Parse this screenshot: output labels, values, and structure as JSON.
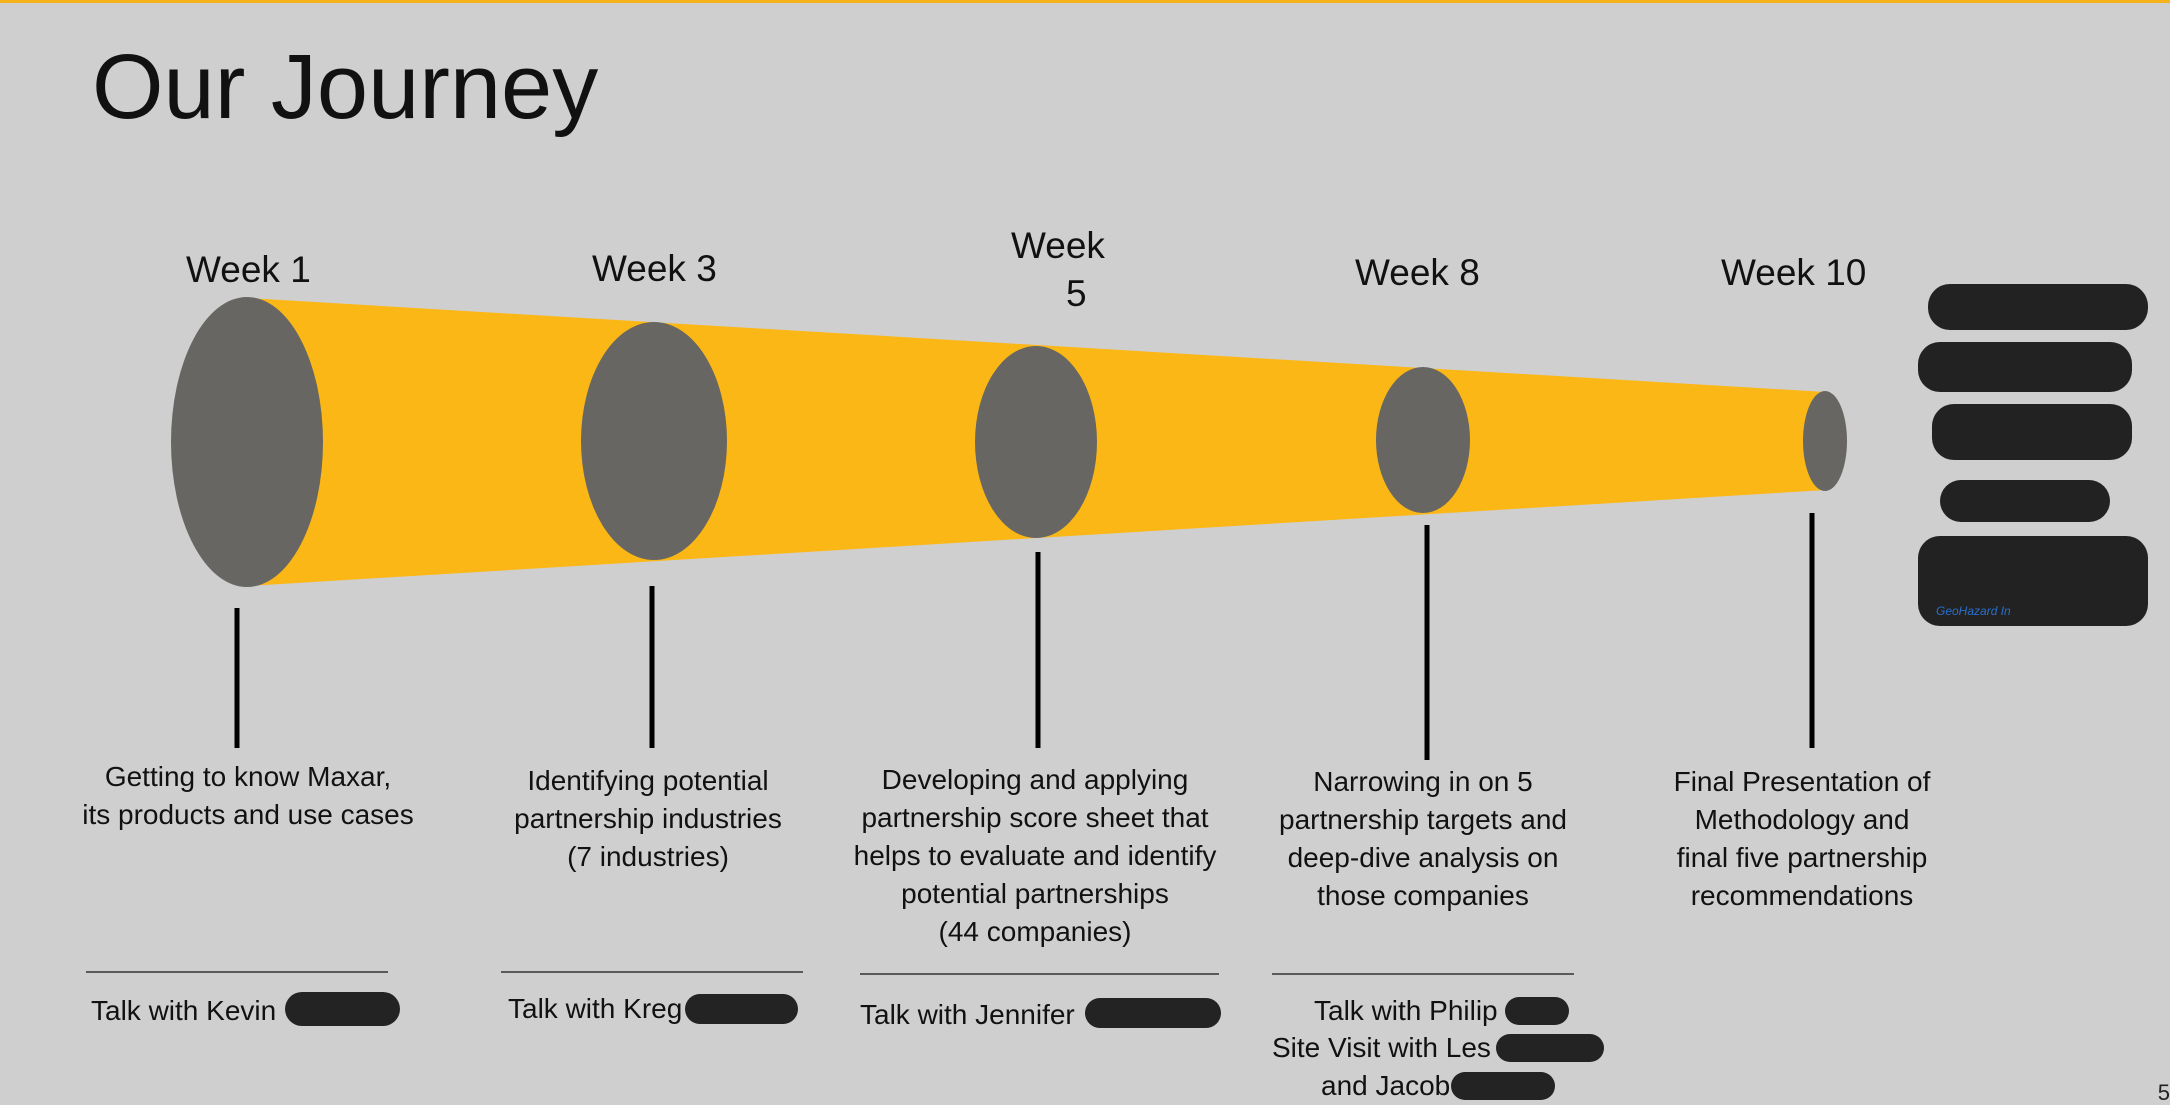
{
  "slide": {
    "title": "Our Journey",
    "page_number": "5",
    "accent_color": "#f5b21a",
    "ellipse_color": "#686663",
    "background_color": "#d0cfcf"
  },
  "milestones": [
    {
      "week": "Week 1",
      "description": [
        "Getting to know Maxar,",
        "its products and use cases"
      ],
      "talk": [
        "Talk with Kevin"
      ]
    },
    {
      "week": "Week 3",
      "description": [
        "Identifying potential",
        "partnership industries",
        "(7 industries)"
      ],
      "talk": [
        "Talk with Kreg"
      ]
    },
    {
      "week_line1": "Week",
      "week_line2": "5",
      "description": [
        "Developing and applying",
        "partnership score sheet that",
        "helps to evaluate and identify",
        "potential partnerships",
        "(44 companies)"
      ],
      "talk": [
        "Talk with Jennifer"
      ]
    },
    {
      "week": "Week 8",
      "description": [
        "Narrowing in on 5",
        "partnership targets and",
        "deep-dive analysis on",
        "those companies"
      ],
      "talk": [
        "Talk with Philip",
        "Site Visit with Les",
        "and Jacob"
      ]
    },
    {
      "week": "Week 10",
      "description": [
        "Final Presentation of",
        "Methodology and",
        "final five partnership",
        "recommendations"
      ]
    }
  ],
  "logo": {
    "caption": "GeoHazard In",
    "icon": "redacted-logo"
  }
}
